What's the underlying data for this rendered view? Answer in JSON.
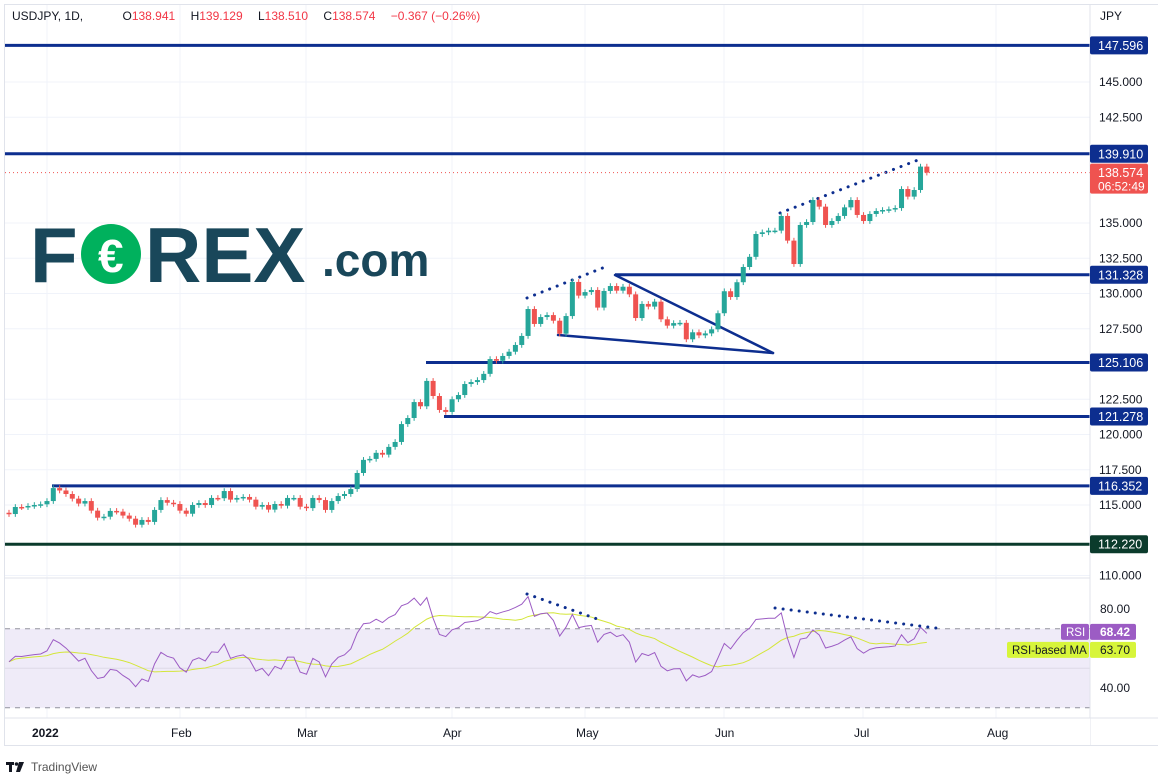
{
  "header": {
    "symbol": "USDJPY, 1D,",
    "open_label": "O",
    "open": "138.941",
    "high_label": "H",
    "high": "139.129",
    "low_label": "L",
    "low": "138.510",
    "close_label": "C",
    "close": "138.574",
    "change": "−0.367 (−0.26%)"
  },
  "watermark": {
    "text": "FOREX.com"
  },
  "footer": {
    "brand": "TradingView"
  },
  "colors": {
    "up": "#26a69a",
    "down": "#ef5350",
    "levels": "#0d2e8f",
    "support_dark": "#0b3b2c",
    "rsi": "#9c5cc4",
    "rsi_ma": "#d7f53a",
    "rsi_band": "#efebf8"
  },
  "chart_data": {
    "type": "candlestick",
    "currency_label": "JPY",
    "time_labels": [
      "2022",
      "Feb",
      "Mar",
      "Apr",
      "May",
      "Jun",
      "Jul",
      "Aug"
    ],
    "price_ticks": [
      "145.000",
      "142.500",
      "135.000",
      "132.500",
      "130.000",
      "127.500",
      "122.500",
      "120.000",
      "117.500",
      "115.000",
      "110.000"
    ],
    "ylim": [
      109.2,
      149.6
    ],
    "first_open": 114.45,
    "closes": [
      114.36,
      114.86,
      114.85,
      114.93,
      115.0,
      115.05,
      115.28,
      116.2,
      116.03,
      115.78,
      115.45,
      115.1,
      115.28,
      114.6,
      114.1,
      114.17,
      114.58,
      114.53,
      114.25,
      114.03,
      113.6,
      113.94,
      113.8,
      114.65,
      115.35,
      115.16,
      115.07,
      114.6,
      114.38,
      115.0,
      115.14,
      115.0,
      115.5,
      115.48,
      115.99,
      115.38,
      115.5,
      115.57,
      115.38,
      114.88,
      115.0,
      114.67,
      115.07,
      114.95,
      115.5,
      115.5,
      114.88,
      114.78,
      115.5,
      115.35,
      114.65,
      115.28,
      115.64,
      115.78,
      116.13,
      117.27,
      118.2,
      118.27,
      118.7,
      118.57,
      119.12,
      119.47,
      120.74,
      121.17,
      122.3,
      122.0,
      123.8,
      122.73,
      121.74,
      121.6,
      122.5,
      122.8,
      123.58,
      123.72,
      123.86,
      124.3,
      125.35,
      125.23,
      125.57,
      125.87,
      126.35,
      126.99,
      128.9,
      127.84,
      128.33,
      128.47,
      128.07,
      127.15,
      128.4,
      130.82,
      129.85,
      130.1,
      130.25,
      129.0,
      130.18,
      130.53,
      130.2,
      130.48,
      129.94,
      128.26,
      129.26,
      129.07,
      129.42,
      128.17,
      127.72,
      127.9,
      127.92,
      126.75,
      127.25,
      127.03,
      127.17,
      127.46,
      128.6,
      130.16,
      129.75,
      130.8,
      131.88,
      132.6,
      134.22,
      134.34,
      134.46,
      134.46,
      135.5,
      133.75,
      132.09,
      134.86,
      135.07,
      136.63,
      136.16,
      134.86,
      135.14,
      135.5,
      136.11,
      136.63,
      135.57,
      135.14,
      135.64,
      135.85,
      135.92,
      135.97,
      136.06,
      137.41,
      136.87,
      137.34,
      139.0,
      138.574
    ],
    "levels": [
      {
        "price": 147.596,
        "label": "147.596",
        "color": "#0d2e8f"
      },
      {
        "price": 139.91,
        "label": "139.910",
        "color": "#0d2e8f"
      },
      {
        "price": 131.328,
        "label": "131.328",
        "color": "#0d2e8f"
      },
      {
        "price": 125.106,
        "label": "125.106",
        "color": "#0d2e8f"
      },
      {
        "price": 121.278,
        "label": "121.278",
        "color": "#0d2e8f"
      },
      {
        "price": 116.352,
        "label": "116.352",
        "color": "#0d2e8f"
      },
      {
        "price": 112.22,
        "label": "112.220",
        "color": "#0b3b2c"
      }
    ],
    "last_price": {
      "label": "138.574",
      "countdown": "06:52:49",
      "color": "#ef5350"
    },
    "rsi": {
      "label": "RSI",
      "value": "68.42",
      "ma_label": "RSI-based MA",
      "ma_value": "63.70",
      "ticks": [
        "80.00",
        "40.00"
      ],
      "band": [
        30,
        70
      ]
    }
  }
}
